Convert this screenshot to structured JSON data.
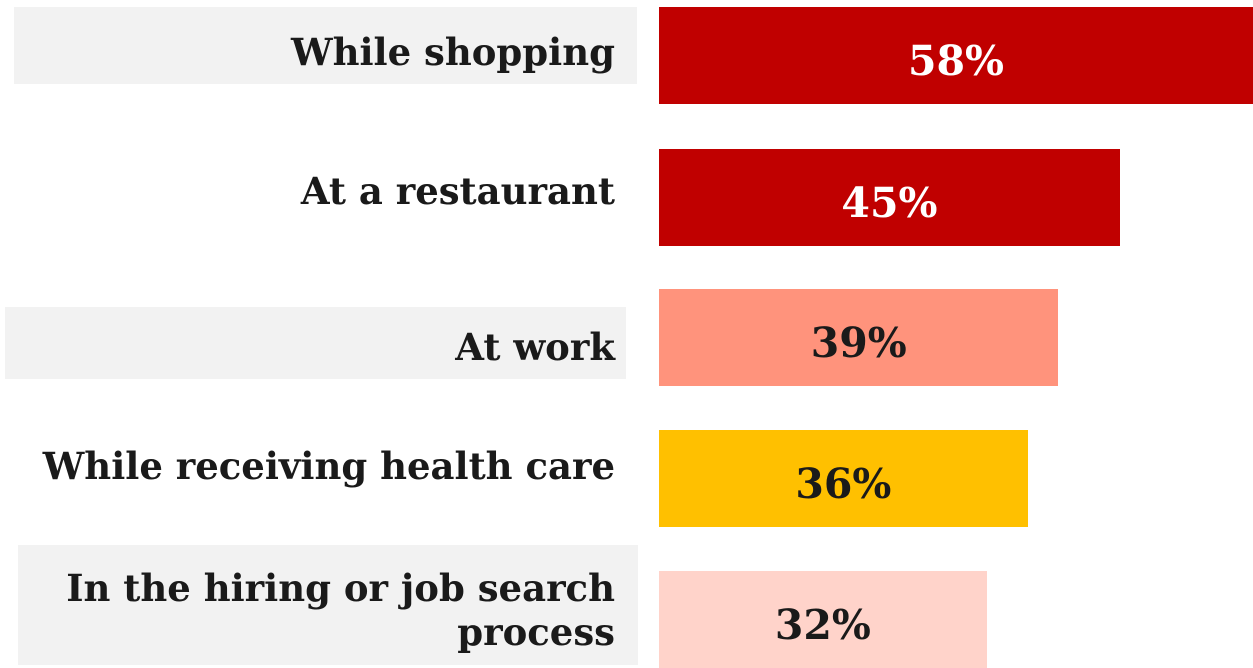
{
  "chart_data": {
    "type": "bar",
    "orientation": "horizontal",
    "categories": [
      "While shopping",
      "At a restaurant",
      "At work",
      "While receiving health care",
      "In the hiring or job search process"
    ],
    "values": [
      58,
      45,
      39,
      36,
      32
    ],
    "value_labels": [
      "58%",
      "45%",
      "39%",
      "36%",
      "32%"
    ],
    "unit": "%",
    "bar_colors": [
      "#c00000",
      "#c00000",
      "#ff937c",
      "#ffc000",
      "#ffd3ca"
    ],
    "value_label_colors": [
      "#ffffff",
      "#ffffff",
      "#1a1a1a",
      "#1a1a1a",
      "#1a1a1a"
    ],
    "label_background_color": "#f2f2f2",
    "label_background_rows": [
      0,
      2,
      4
    ],
    "grid": false,
    "legend": "none"
  }
}
